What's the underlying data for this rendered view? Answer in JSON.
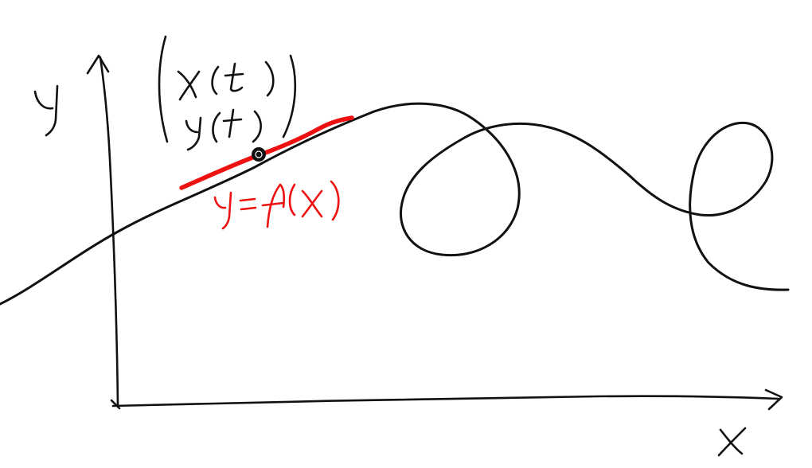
{
  "diagram": {
    "handwritten_labels": {
      "y_axis_label": "y",
      "x_axis_label": "x",
      "parametric_top": "x(t)",
      "parametric_bottom": "y(t)",
      "local_function": "y = f(x)"
    },
    "colors": {
      "ink": "#111111",
      "highlight": "#ee1111",
      "background": "#ffffff"
    },
    "elements": [
      "y-axis-arrow",
      "x-axis-arrow",
      "parametric-curve",
      "highlighted-segment",
      "marked-point",
      "vector-bracket"
    ]
  }
}
